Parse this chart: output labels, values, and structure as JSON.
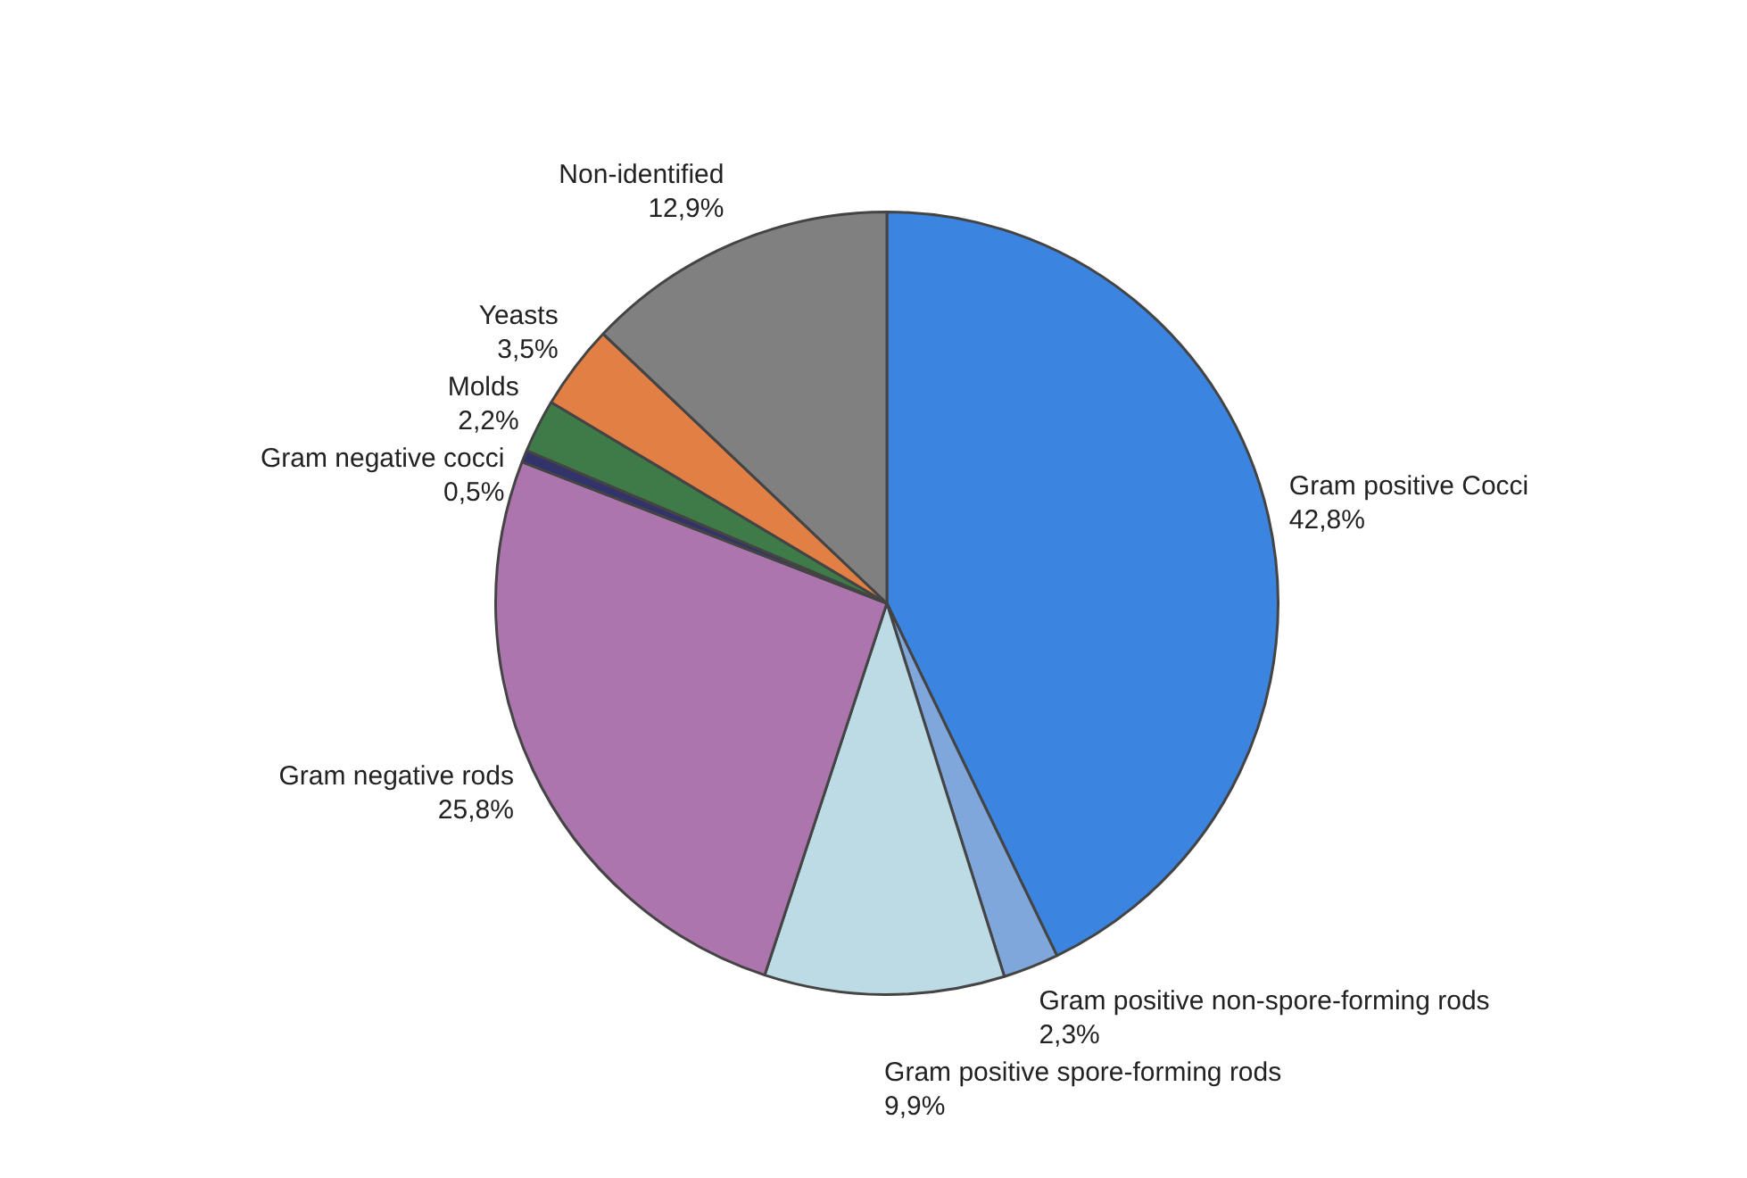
{
  "chart_data": {
    "type": "pie",
    "categories": [
      "Gram positive Cocci",
      "Gram positive non-spore-forming rods",
      "Gram positive spore-forming rods",
      "Gram negative rods",
      "Gram negative cocci",
      "Molds",
      "Yeasts",
      "Non-identified"
    ],
    "values": [
      42.8,
      2.3,
      9.9,
      25.8,
      0.5,
      2.2,
      3.5,
      12.9
    ],
    "value_labels": [
      "42,8%",
      "2,3%",
      "9,9%",
      "25,8%",
      "0,5%",
      "2,2%",
      "3,5%",
      "12,9%"
    ],
    "colors": [
      "#3b84e0",
      "#7fa7db",
      "#bddbe5",
      "#ad75ad",
      "#33336b",
      "#3f7b48",
      "#e27f45",
      "#808080"
    ]
  }
}
